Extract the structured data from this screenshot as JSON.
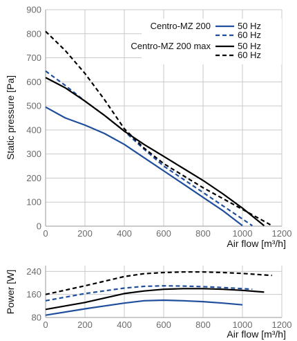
{
  "colors": {
    "blue": "#1f4e9c",
    "black": "#000000"
  },
  "chart_data": [
    {
      "type": "line",
      "ylabel": "Static pressure [Pa]",
      "xlabel": "Air flow [m³/h]",
      "xlim": [
        0,
        1200
      ],
      "ylim": [
        0,
        900
      ],
      "xticks": [
        0,
        200,
        400,
        600,
        800,
        1000,
        1200
      ],
      "yticks": [
        0,
        100,
        200,
        300,
        400,
        500,
        600,
        700,
        800,
        900
      ],
      "grid": true,
      "legend": {
        "placement": "top-right",
        "groups": [
          "Centro-MZ 200",
          "Centro-MZ 200 max"
        ],
        "entries": [
          "50 Hz",
          "60 Hz",
          "50 Hz",
          "60 Hz"
        ]
      },
      "series": [
        {
          "name": "Centro-MZ 200 50 Hz",
          "color": "blue",
          "dash": false,
          "x": [
            0,
            100,
            200,
            300,
            400,
            500,
            600,
            700,
            800,
            900,
            1000
          ],
          "y": [
            495,
            450,
            420,
            385,
            340,
            285,
            230,
            175,
            120,
            65,
            2
          ]
        },
        {
          "name": "Centro-MZ 200 60 Hz",
          "color": "blue",
          "dash": true,
          "x": [
            0,
            100,
            200,
            300,
            400,
            500,
            600,
            700,
            800,
            900,
            1000,
            1050
          ],
          "y": [
            645,
            585,
            520,
            460,
            395,
            320,
            250,
            195,
            140,
            85,
            30,
            2
          ]
        },
        {
          "name": "Centro-MZ 200 max 50 Hz",
          "color": "black",
          "dash": false,
          "x": [
            0,
            100,
            200,
            300,
            400,
            500,
            600,
            700,
            800,
            900,
            1000,
            1110
          ],
          "y": [
            618,
            575,
            520,
            460,
            395,
            340,
            290,
            240,
            190,
            135,
            75,
            2
          ]
        },
        {
          "name": "Centro-MZ 200 max 60 Hz",
          "color": "black",
          "dash": true,
          "x": [
            0,
            100,
            200,
            300,
            400,
            500,
            600,
            700,
            800,
            900,
            1000,
            1100,
            1150
          ],
          "y": [
            810,
            730,
            635,
            525,
            405,
            325,
            260,
            210,
            160,
            115,
            70,
            25,
            2
          ]
        }
      ]
    },
    {
      "type": "line",
      "ylabel": "Power [W]",
      "xlabel": "Air flow [m³/h]",
      "xlim": [
        0,
        1200
      ],
      "ylim": [
        80,
        260
      ],
      "xticks": [
        0,
        200,
        400,
        600,
        800,
        1000,
        1200
      ],
      "yticks": [
        80,
        160,
        240
      ],
      "grid": true,
      "series": [
        {
          "name": "Centro-MZ 200 50 Hz",
          "color": "blue",
          "dash": false,
          "x": [
            0,
            200,
            400,
            500,
            600,
            700,
            800,
            900,
            1000
          ],
          "y": [
            88,
            110,
            130,
            138,
            140,
            138,
            135,
            130,
            124
          ]
        },
        {
          "name": "Centro-MZ 200 60 Hz",
          "color": "blue",
          "dash": true,
          "x": [
            0,
            200,
            400,
            500,
            600,
            700,
            800,
            900,
            1000,
            1050
          ],
          "y": [
            138,
            163,
            182,
            188,
            190,
            189,
            187,
            184,
            180,
            178
          ]
        },
        {
          "name": "Centro-MZ 200 max 50 Hz",
          "color": "black",
          "dash": false,
          "x": [
            0,
            200,
            400,
            500,
            600,
            700,
            800,
            900,
            1000,
            1110
          ],
          "y": [
            108,
            132,
            163,
            172,
            178,
            180,
            180,
            178,
            174,
            168
          ]
        },
        {
          "name": "Centro-MZ 200 max 60 Hz",
          "color": "black",
          "dash": true,
          "x": [
            0,
            200,
            400,
            500,
            600,
            700,
            800,
            900,
            1000,
            1100,
            1150
          ],
          "y": [
            160,
            190,
            222,
            232,
            236,
            238,
            238,
            236,
            233,
            228,
            226
          ]
        }
      ]
    }
  ]
}
